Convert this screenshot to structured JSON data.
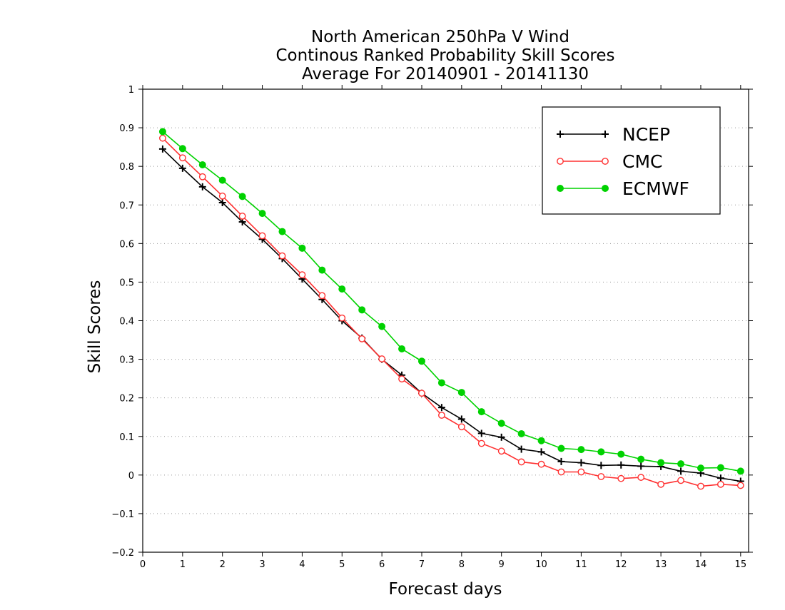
{
  "chart_data": {
    "type": "line",
    "title": [
      "North American 250hPa V Wind",
      "Continous Ranked Probability Skill Scores",
      "Average For 20140901 - 20141130"
    ],
    "xlabel": "Forecast days",
    "ylabel": "Skill Scores",
    "xlim": [
      0,
      15.2
    ],
    "ylim": [
      -0.2,
      1.0
    ],
    "xticks": [
      "0",
      "1",
      "2",
      "3",
      "4",
      "5",
      "6",
      "7",
      "8",
      "9",
      "10",
      "11",
      "12",
      "13",
      "14",
      "15"
    ],
    "yticks": [
      "−0.2",
      "−0.1",
      "0",
      "0.1",
      "0.2",
      "0.3",
      "0.4",
      "0.5",
      "0.6",
      "0.7",
      "0.8",
      "0.9",
      "1"
    ],
    "grid": true,
    "legend_position": "top-right",
    "x": [
      0.5,
      1,
      1.5,
      2,
      2.5,
      3,
      3.5,
      4,
      4.5,
      5,
      5.5,
      6,
      6.5,
      7,
      7.5,
      8,
      8.5,
      9,
      9.5,
      10,
      10.5,
      11,
      11.5,
      12,
      12.5,
      13,
      13.5,
      14,
      14.5,
      15
    ],
    "series": [
      {
        "name": "NCEP",
        "color": "#000000",
        "marker": "plus",
        "values": [
          0.845,
          0.795,
          0.747,
          0.706,
          0.656,
          0.611,
          0.561,
          0.508,
          0.455,
          0.4,
          0.355,
          0.3,
          0.259,
          0.212,
          0.175,
          0.145,
          0.108,
          0.098,
          0.067,
          0.06,
          0.035,
          0.032,
          0.025,
          0.026,
          0.023,
          0.022,
          0.01,
          0.005,
          -0.008,
          -0.016
        ]
      },
      {
        "name": "CMC",
        "color": "#ff3030",
        "marker": "open-circle",
        "values": [
          0.873,
          0.822,
          0.773,
          0.723,
          0.671,
          0.62,
          0.568,
          0.519,
          0.465,
          0.407,
          0.353,
          0.301,
          0.249,
          0.212,
          0.155,
          0.125,
          0.082,
          0.062,
          0.034,
          0.028,
          0.008,
          0.008,
          -0.004,
          -0.009,
          -0.006,
          -0.024,
          -0.014,
          -0.029,
          -0.024,
          -0.027
        ]
      },
      {
        "name": "ECMWF",
        "color": "#00d200",
        "marker": "filled-circle",
        "values": [
          0.89,
          0.846,
          0.804,
          0.764,
          0.722,
          0.678,
          0.631,
          0.588,
          0.531,
          0.482,
          0.428,
          0.385,
          0.327,
          0.295,
          0.239,
          0.214,
          0.164,
          0.134,
          0.107,
          0.089,
          0.069,
          0.066,
          0.06,
          0.054,
          0.041,
          0.032,
          0.029,
          0.018,
          0.019,
          0.01
        ]
      }
    ]
  }
}
